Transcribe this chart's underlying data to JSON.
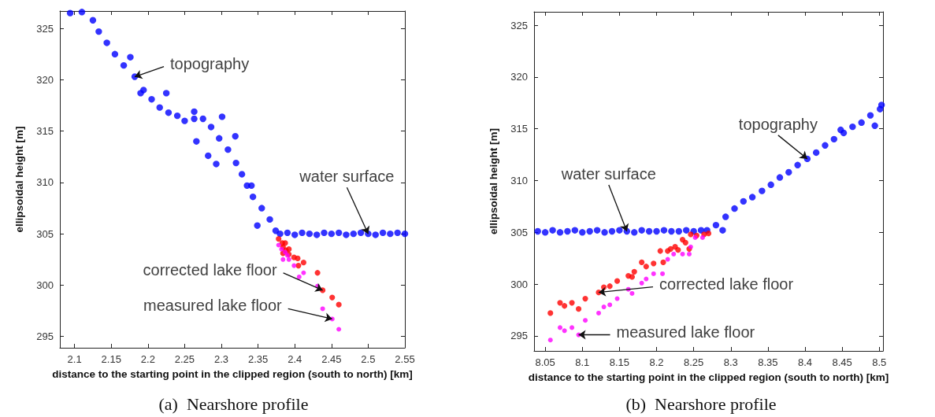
{
  "chart_data": [
    {
      "type": "scatter",
      "subtitle": "(a)  Nearshore profile",
      "xlabel": "distance to the starting point in the clipped region (south to north) [km]",
      "ylabel": "ellipsoidal height [m]",
      "marker": "circle",
      "grid": false,
      "xlim": [
        2.08,
        2.55
      ],
      "ylim": [
        293.9,
        326.7
      ],
      "xticks": [
        2.1,
        2.15,
        2.2,
        2.25,
        2.3,
        2.35,
        2.4,
        2.45,
        2.5,
        2.55
      ],
      "yticks": [
        295,
        300,
        305,
        310,
        315,
        320,
        325
      ],
      "annotations": [
        {
          "text": "topography",
          "x": 2.182,
          "y": 320.3
        },
        {
          "text": "water surface",
          "x": 2.5,
          "y": 305
        },
        {
          "text": "corrected lake floor",
          "x": 2.438,
          "y": 299.5
        },
        {
          "text": "measured lake floor",
          "x": 2.451,
          "y": 296.7
        }
      ],
      "series": [
        {
          "color": "#0000ff",
          "x": [
            2.094,
            2.11,
            2.125,
            2.133,
            2.144,
            2.155,
            2.167,
            2.182,
            2.194,
            2.205,
            2.216,
            2.228,
            2.24,
            2.25,
            2.263,
            2.275,
            2.286,
            2.297,
            2.309,
            2.32,
            2.328,
            2.335,
            2.343,
            2.355,
            2.366,
            2.374,
            2.282,
            2.293,
            2.266,
            2.225,
            2.176,
            2.263,
            2.301,
            2.319,
            2.341,
            2.349,
            2.19,
            2.38,
            2.39,
            2.4,
            2.41,
            2.42,
            2.43,
            2.44,
            2.45,
            2.46,
            2.47,
            2.48,
            2.49,
            2.5,
            2.51,
            2.52,
            2.53,
            2.54,
            2.55
          ],
          "values": [
            326.5,
            326.6,
            325.8,
            324.7,
            323.6,
            322.5,
            321.4,
            320.3,
            319,
            318.1,
            317.3,
            316.8,
            316.5,
            316,
            316.2,
            316.2,
            315.4,
            314.3,
            313.2,
            311.9,
            310.8,
            309.7,
            308.6,
            307.5,
            306.4,
            305.3,
            312.6,
            311.8,
            314,
            318.7,
            322.2,
            316.9,
            316.4,
            314.5,
            309.7,
            305.8,
            318.7,
            305,
            305.1,
            304.9,
            305.1,
            305,
            304.9,
            305.1,
            305,
            305.1,
            304.9,
            305,
            305.1,
            305,
            304.9,
            305.1,
            305,
            305.1,
            305
          ]
        },
        {
          "color": "#ff0000",
          "x": [
            2.378,
            2.383,
            2.387,
            2.384,
            2.388,
            2.392,
            2.384,
            2.392,
            2.399,
            2.404,
            2.412,
            2.405,
            2.431,
            2.438,
            2.451,
            2.46
          ],
          "values": [
            304.5,
            304.1,
            304.1,
            303.7,
            303.4,
            303.5,
            303.1,
            303,
            302.7,
            302.6,
            302.2,
            301.9,
            301.2,
            299.5,
            298.8,
            298.1
          ]
        },
        {
          "color": "#ff00ff",
          "x": [
            2.378,
            2.382,
            2.387,
            2.384,
            2.392,
            2.39,
            2.399,
            2.406,
            2.412,
            2.431,
            2.438,
            2.451,
            2.46
          ],
          "values": [
            303.9,
            303.5,
            303.2,
            302.5,
            302.5,
            302.9,
            301.9,
            300.8,
            301.2,
            299.9,
            297.7,
            296.7,
            295.7
          ]
        }
      ]
    },
    {
      "type": "scatter",
      "subtitle": "(b)  Nearshore profile",
      "xlabel": "distance to the starting point in the clipped region (south to north) [km]",
      "ylabel": "ellipsoidal height [m]",
      "marker": "circle",
      "grid": false,
      "xlim": [
        8.035,
        8.505
      ],
      "ylim": [
        293.55,
        326.3
      ],
      "xticks": [
        8.05,
        8.1,
        8.15,
        8.2,
        8.25,
        8.3,
        8.35,
        8.4,
        8.45,
        8.5
      ],
      "yticks": [
        295,
        300,
        305,
        310,
        315,
        320,
        325
      ],
      "annotations": [
        {
          "text": "water surface",
          "x": 8.16,
          "y": 305.1
        },
        {
          "text": "topography",
          "x": 8.403,
          "y": 312.1
        },
        {
          "text": "corrected lake floor",
          "x": 8.122,
          "y": 299.2
        },
        {
          "text": "measured lake floor",
          "x": 8.095,
          "y": 295.1
        }
      ],
      "series": [
        {
          "color": "#0000ff",
          "x": [
            8.04,
            8.05,
            8.06,
            8.07,
            8.08,
            8.09,
            8.1,
            8.11,
            8.12,
            8.13,
            8.14,
            8.15,
            8.16,
            8.17,
            8.18,
            8.19,
            8.2,
            8.21,
            8.22,
            8.23,
            8.24,
            8.25,
            8.26,
            8.268,
            8.28,
            8.293,
            8.305,
            8.317,
            8.329,
            8.342,
            8.354,
            8.366,
            8.378,
            8.39,
            8.403,
            8.415,
            8.427,
            8.439,
            8.452,
            8.464,
            8.476,
            8.488,
            8.501,
            8.503,
            8.448,
            8.494,
            8.289
          ],
          "values": [
            305.1,
            305,
            305.2,
            305,
            305.1,
            305.2,
            305,
            305.1,
            305.2,
            305,
            305.1,
            305.2,
            305.1,
            305,
            305.2,
            305.1,
            305.1,
            305.2,
            305.1,
            305.1,
            305.2,
            305.1,
            305.2,
            305.2,
            305.7,
            306.5,
            307.3,
            308,
            308.4,
            309,
            309.6,
            310.3,
            310.8,
            311.5,
            312.1,
            312.7,
            313.4,
            314,
            314.6,
            315.2,
            315.6,
            316.3,
            316.9,
            317.3,
            314.9,
            315.3,
            305.2
          ]
        },
        {
          "color": "#ff0000",
          "x": [
            8.057,
            8.07,
            8.076,
            8.086,
            8.095,
            8.104,
            8.122,
            8.129,
            8.137,
            8.147,
            8.162,
            8.167,
            8.17,
            8.18,
            8.186,
            8.196,
            8.205,
            8.209,
            8.215,
            8.219,
            8.225,
            8.229,
            8.235,
            8.239,
            8.244,
            8.246,
            8.254,
            8.264,
            8.27
          ],
          "values": [
            297.2,
            298.2,
            297.9,
            298.2,
            297.6,
            298.6,
            299.2,
            299.7,
            299.8,
            300.3,
            300.8,
            300.7,
            301.2,
            302.1,
            301.7,
            302,
            303.2,
            302.1,
            303.2,
            303.4,
            303.6,
            303.3,
            304.3,
            304,
            303.4,
            304.8,
            304.7,
            304.8,
            304.9
          ]
        },
        {
          "color": "#ff00ff",
          "x": [
            8.057,
            8.07,
            8.076,
            8.086,
            8.095,
            8.104,
            8.122,
            8.129,
            8.137,
            8.147,
            8.162,
            8.167,
            8.18,
            8.186,
            8.196,
            8.208,
            8.215,
            8.223,
            8.235,
            8.244,
            8.246,
            8.252,
            8.262
          ],
          "values": [
            294.6,
            295.8,
            295.5,
            295.8,
            295.1,
            296.5,
            297.2,
            297.8,
            298,
            298.6,
            299.5,
            299.1,
            300.1,
            300.5,
            301,
            301,
            302.4,
            302.9,
            302.9,
            302.9,
            303.6,
            304.5,
            304.5
          ]
        }
      ]
    }
  ]
}
